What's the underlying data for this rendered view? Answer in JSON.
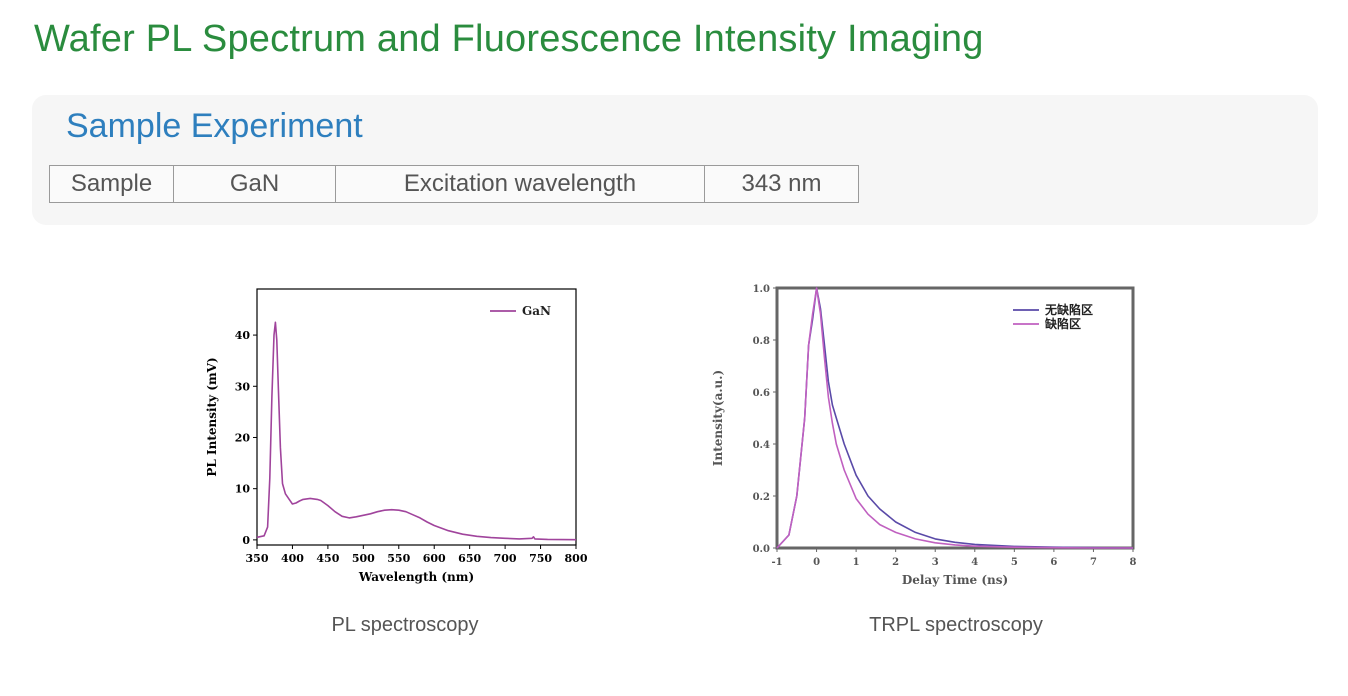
{
  "page": {
    "title": "Wafer PL Spectrum and Fluorescence Intensity Imaging"
  },
  "experiment": {
    "heading": "Sample Experiment",
    "table": {
      "sample_label": "Sample",
      "sample_value": "GaN",
      "excitation_label": "Excitation wavelength",
      "excitation_value": "343 nm"
    }
  },
  "colors": {
    "title_green": "#2a8c3e",
    "heading_blue": "#2e7fbe",
    "pl_line": "#a0449c",
    "trpl_no_defect": "#5a4aa8",
    "trpl_defect": "#c060c0"
  },
  "chart_data": [
    {
      "type": "line",
      "caption": "PL spectroscopy",
      "title": "",
      "xlabel": "Wavelength (nm)",
      "ylabel": "PL Intensity (mV)",
      "xlim": [
        350,
        800
      ],
      "ylim": [
        -1,
        49
      ],
      "xticks": [
        350,
        400,
        450,
        500,
        550,
        600,
        650,
        700,
        750,
        800
      ],
      "yticks": [
        0,
        10,
        20,
        30,
        40
      ],
      "legend": "top-right",
      "series": [
        {
          "name": "GaN",
          "x": [
            350,
            360,
            365,
            368,
            371,
            374,
            376,
            378,
            380,
            383,
            386,
            390,
            395,
            400,
            405,
            410,
            415,
            420,
            425,
            430,
            435,
            440,
            445,
            450,
            460,
            470,
            480,
            490,
            500,
            510,
            520,
            530,
            540,
            550,
            560,
            570,
            580,
            590,
            600,
            620,
            640,
            660,
            680,
            700,
            720,
            738,
            740,
            742,
            760,
            780,
            800
          ],
          "y": [
            0.5,
            0.8,
            2.5,
            12,
            28,
            40,
            42.5,
            39,
            30,
            18,
            11,
            9,
            8,
            7,
            7.2,
            7.6,
            7.9,
            8,
            8.1,
            8,
            7.9,
            7.7,
            7.2,
            6.7,
            5.5,
            4.6,
            4.3,
            4.5,
            4.8,
            5.1,
            5.5,
            5.8,
            5.9,
            5.8,
            5.5,
            4.9,
            4.3,
            3.5,
            2.8,
            1.8,
            1.1,
            0.7,
            0.45,
            0.3,
            0.2,
            0.3,
            0.6,
            0.2,
            0.1,
            0.05,
            0.03
          ]
        }
      ]
    },
    {
      "type": "line",
      "caption": "TRPL spectroscopy",
      "title": "",
      "xlabel": "Delay Time (ns)",
      "ylabel": "Intensity(a.u.)",
      "xlim": [
        -1,
        8
      ],
      "ylim": [
        0,
        1.0
      ],
      "xticks": [
        -1,
        0,
        1,
        2,
        3,
        4,
        5,
        6,
        7,
        8
      ],
      "yticks": [
        "0.0",
        "0.2",
        "0.4",
        "0.6",
        "0.8",
        "1.0"
      ],
      "legend": "top-right",
      "series": [
        {
          "name": "无缺陷区",
          "x": [
            -1,
            -0.7,
            -0.5,
            -0.3,
            -0.2,
            -0.1,
            0,
            0.1,
            0.2,
            0.3,
            0.4,
            0.5,
            0.7,
            1,
            1.3,
            1.6,
            2,
            2.5,
            3,
            3.5,
            4,
            5,
            6,
            7,
            8
          ],
          "y": [
            0,
            0.05,
            0.2,
            0.5,
            0.78,
            0.88,
            1.0,
            0.92,
            0.78,
            0.64,
            0.55,
            0.5,
            0.4,
            0.28,
            0.2,
            0.15,
            0.1,
            0.06,
            0.035,
            0.022,
            0.014,
            0.006,
            0.003,
            0.001,
            0.0
          ]
        },
        {
          "name": "缺陷区",
          "x": [
            -1,
            -0.7,
            -0.5,
            -0.3,
            -0.2,
            -0.1,
            0,
            0.1,
            0.2,
            0.3,
            0.4,
            0.5,
            0.7,
            1,
            1.3,
            1.6,
            2,
            2.5,
            3,
            3.5,
            4,
            5,
            6,
            7,
            8
          ],
          "y": [
            0,
            0.05,
            0.2,
            0.5,
            0.78,
            0.9,
            1.0,
            0.9,
            0.73,
            0.58,
            0.48,
            0.4,
            0.3,
            0.19,
            0.13,
            0.09,
            0.06,
            0.035,
            0.02,
            0.012,
            0.007,
            0.003,
            0.001,
            0.0,
            0.0
          ]
        }
      ]
    }
  ]
}
